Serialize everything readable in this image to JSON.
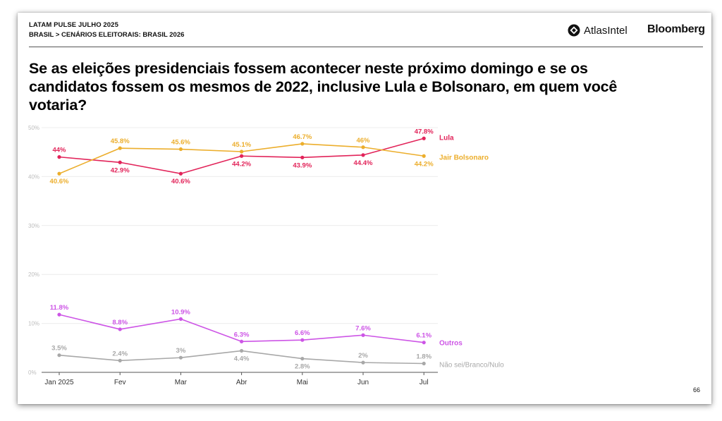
{
  "header": {
    "line1": "LATAM PULSE JULHO 2025",
    "line2": "BRASIL > CENÁRIOS ELEITORAIS: BRASIL 2026",
    "logo_atlas": "AtlasIntel",
    "logo_bloomberg": "Bloomberg"
  },
  "title": "Se as eleições presidenciais fossem acontecer neste próximo domingo e se os candidatos fossem os mesmos de 2022, inclusive Lula e Bolsonaro, em quem você votaria?",
  "page_number": "66",
  "colors": {
    "lula": "#e2245a",
    "bolsonaro": "#ecae2c",
    "outros": "#cd55e6",
    "nao_sei": "#a8a8a8"
  },
  "chart_data": {
    "type": "line",
    "categories": [
      "Jan 2025",
      "Fev",
      "Mar",
      "Abr",
      "Mai",
      "Jun",
      "Jul"
    ],
    "ylim": [
      0,
      50
    ],
    "y_ticks": [
      "0%",
      "10%",
      "20%",
      "30%",
      "40%",
      "50%"
    ],
    "grid": true,
    "legend": "right end labels",
    "series": [
      {
        "name": "Lula",
        "values": [
          44,
          42.9,
          40.6,
          44.2,
          43.9,
          44.4,
          47.8
        ],
        "labels": [
          "44%",
          "42.9%",
          "40.6%",
          "44.2%",
          "43.9%",
          "44.4%",
          "47.8%"
        ],
        "color": "#e2245a"
      },
      {
        "name": "Jair Bolsonaro",
        "values": [
          40.6,
          45.8,
          45.6,
          45.1,
          46.7,
          46,
          44.2
        ],
        "labels": [
          "40.6%",
          "45.8%",
          "45.6%",
          "45.1%",
          "46.7%",
          "46%",
          "44.2%"
        ],
        "color": "#ecae2c"
      },
      {
        "name": "Outros",
        "values": [
          11.8,
          8.8,
          10.9,
          6.3,
          6.6,
          7.6,
          6.1
        ],
        "labels": [
          "11.8%",
          "8.8%",
          "10.9%",
          "6.3%",
          "6.6%",
          "7.6%",
          "6.1%"
        ],
        "color": "#cd55e6"
      },
      {
        "name": "Não sei/Branco/Nulo",
        "values": [
          3.5,
          2.4,
          3,
          4.4,
          2.8,
          2,
          1.8
        ],
        "labels": [
          "3.5%",
          "2.4%",
          "3%",
          "4.4%",
          "2.8%",
          "2%",
          "1.8%"
        ],
        "color": "#a8a8a8"
      }
    ]
  }
}
